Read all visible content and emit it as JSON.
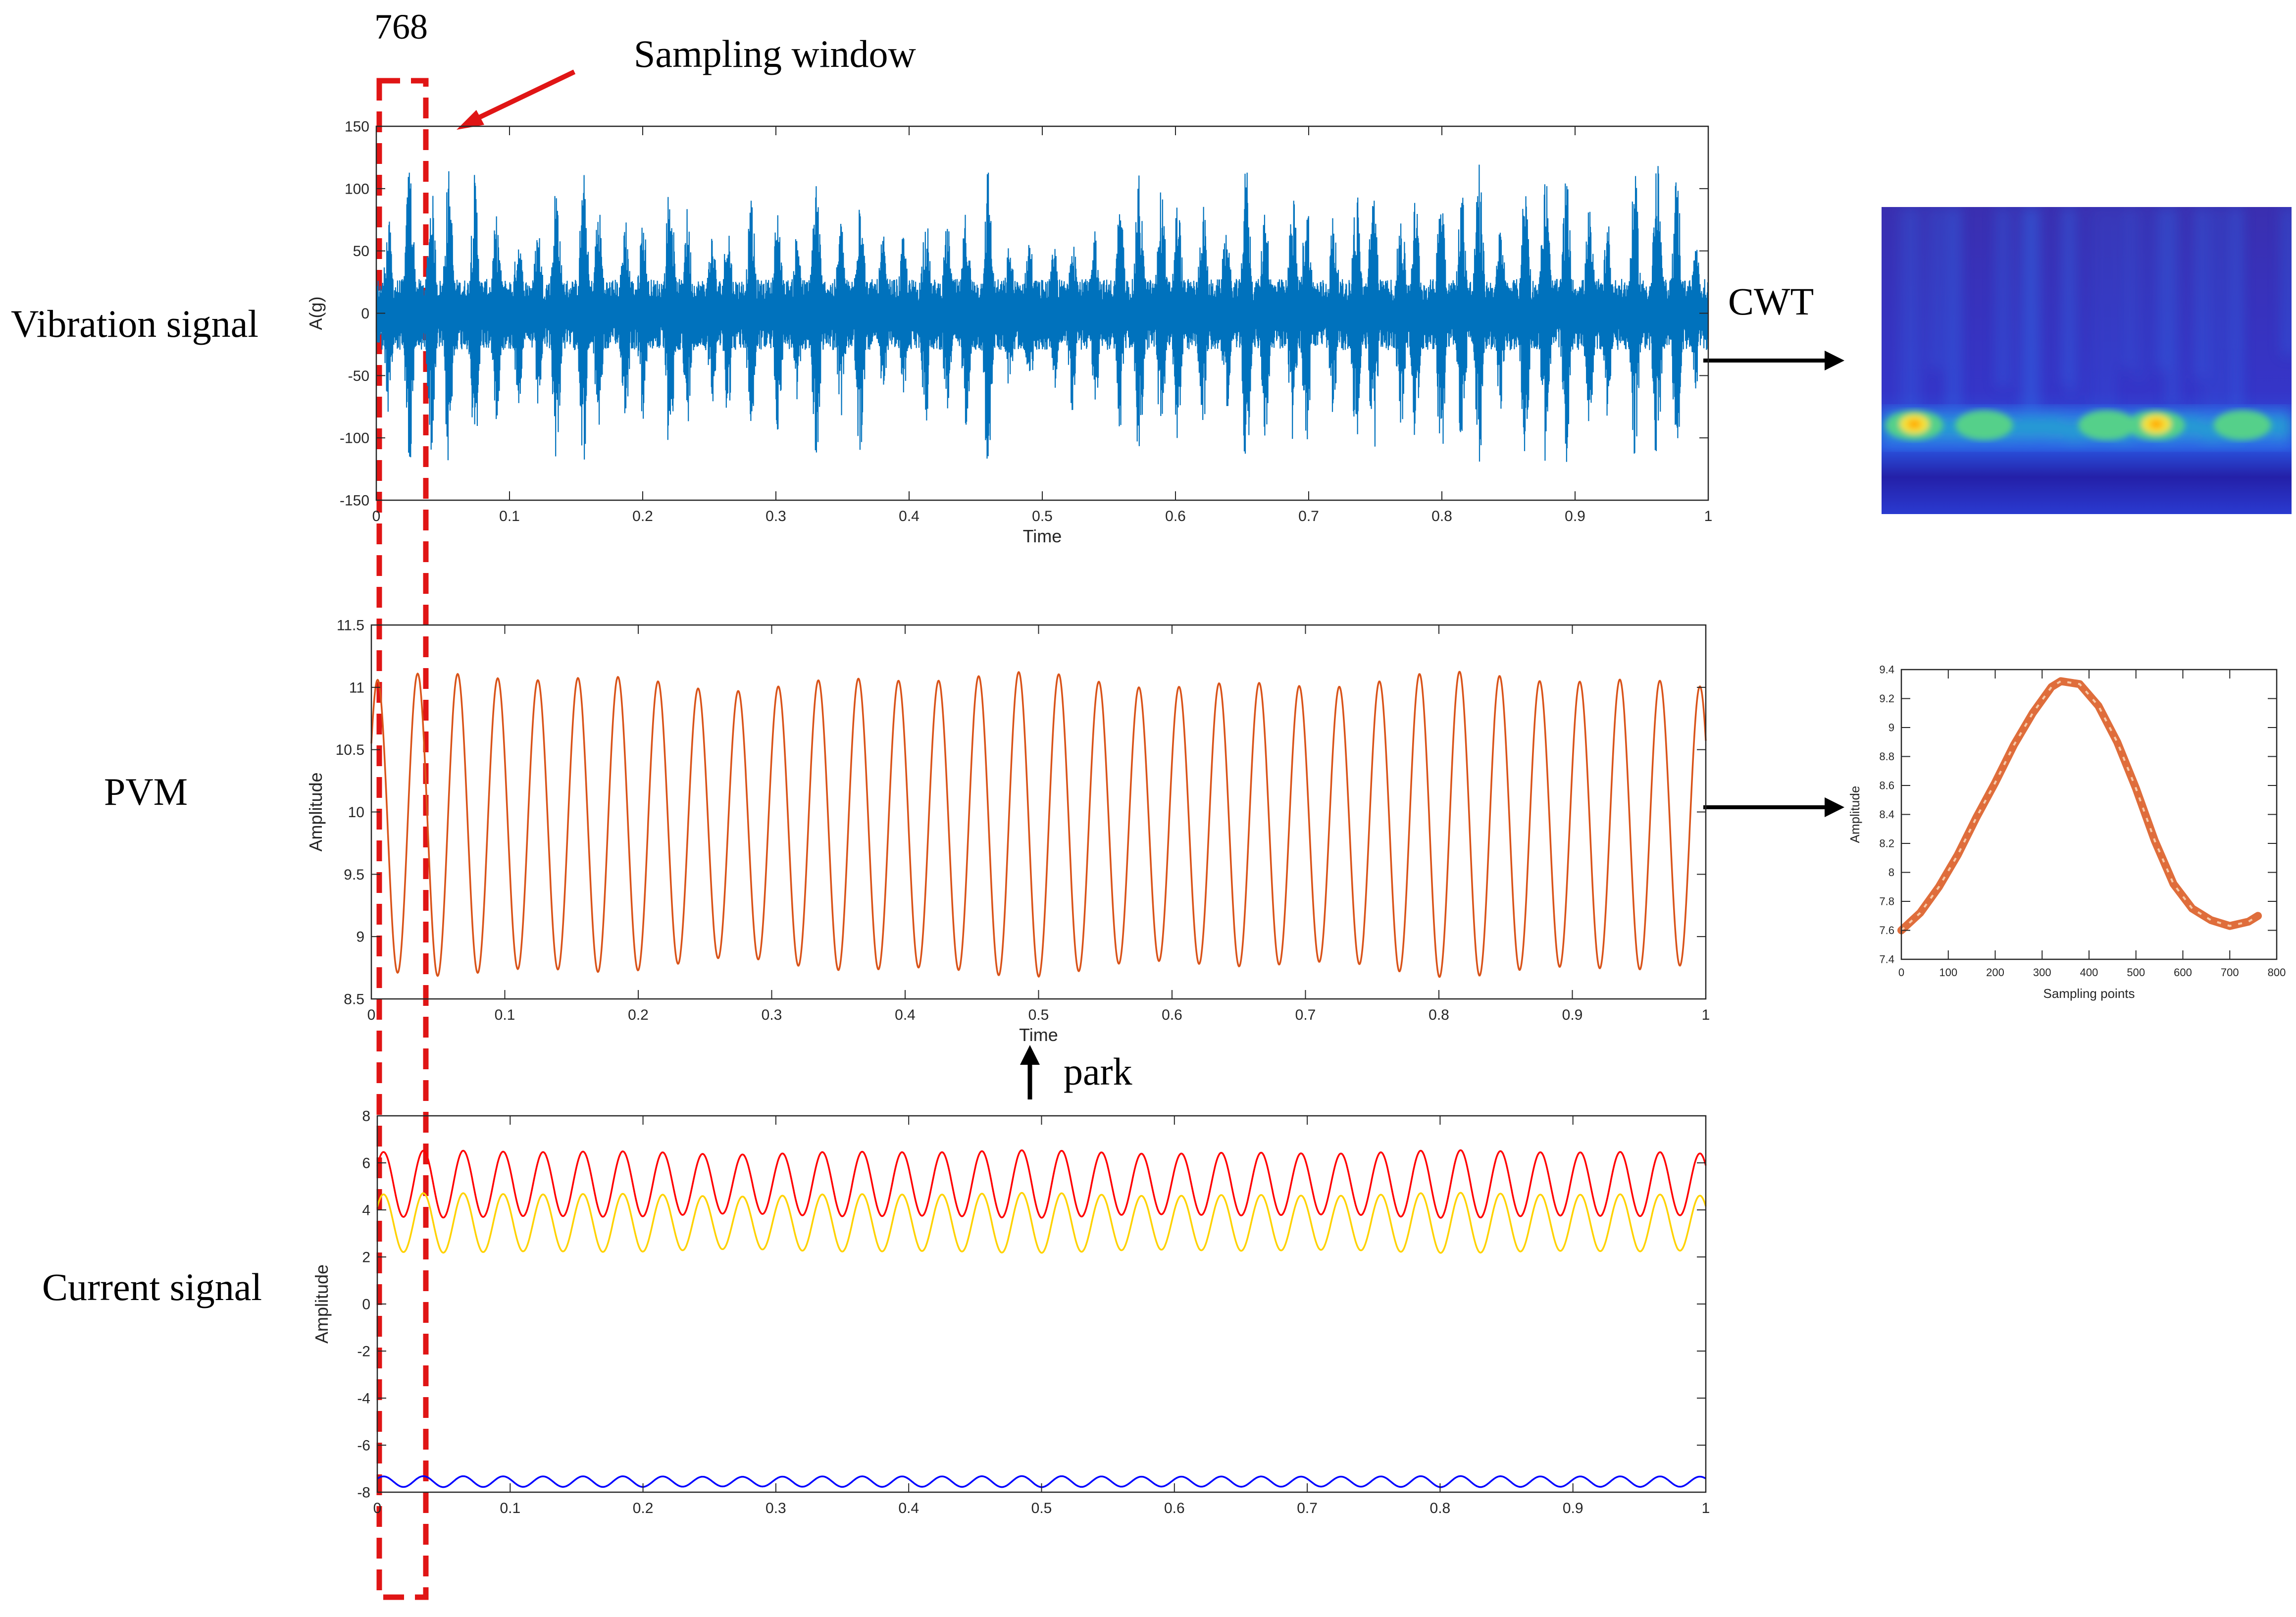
{
  "annotations": {
    "window_size": "768",
    "sampling_window": "Sampling window",
    "cwt": "CWT",
    "park": "park"
  },
  "row_labels": {
    "vibration": "Vibration signal",
    "pvm": "PVM",
    "current": "Current signal"
  },
  "chart_data": [
    {
      "id": "vibration",
      "type": "line",
      "xlabel": "Time",
      "ylabel": "A(g)",
      "xlim": [
        0,
        1
      ],
      "ylim": [
        -150,
        150
      ],
      "xticks": [
        "0",
        "0.1",
        "0.2",
        "0.3",
        "0.4",
        "0.5",
        "0.6",
        "0.7",
        "0.8",
        "0.9",
        "1"
      ],
      "yticks": [
        "-150",
        "-100",
        "-50",
        "0",
        "50",
        "100",
        "150"
      ],
      "series": [
        {
          "color": "#0072BD",
          "kind": "noise-bursts",
          "burst_count": 62,
          "max_amplitude": 125,
          "min_amplitude": -135
        }
      ]
    },
    {
      "id": "pvm",
      "type": "line",
      "xlabel": "Time",
      "ylabel": "Amplitude",
      "xlim": [
        0,
        1
      ],
      "ylim": [
        8.5,
        11.5
      ],
      "xticks": [
        "0",
        "0.1",
        "0.2",
        "0.3",
        "0.4",
        "0.5",
        "0.6",
        "0.7",
        "0.8",
        "0.9",
        "1"
      ],
      "yticks": [
        "8.5",
        "9",
        "9.5",
        "10",
        "10.5",
        "11",
        "11.5"
      ],
      "series": [
        {
          "color": "#D95319",
          "kind": "sine",
          "cycles": 33.3,
          "center": 9.9,
          "amplitude": 1.15
        }
      ]
    },
    {
      "id": "current",
      "type": "line",
      "xlabel": "",
      "ylabel": "Amplitude",
      "xlim": [
        0,
        1
      ],
      "ylim": [
        -8,
        8
      ],
      "xticks": [
        "0",
        "0.1",
        "0.2",
        "0.3",
        "0.4",
        "0.5",
        "0.6",
        "0.7",
        "0.8",
        "0.9",
        "1"
      ],
      "yticks": [
        "-8",
        "-6",
        "-4",
        "-2",
        "0",
        "2",
        "4",
        "6",
        "8"
      ],
      "series": [
        {
          "color": "#FF0000",
          "kind": "sine",
          "cycles": 33.3,
          "center": 5.1,
          "amplitude": 1.35
        },
        {
          "color": "#FFD200",
          "kind": "sine",
          "cycles": 33.3,
          "center": 3.45,
          "amplitude": 1.2
        },
        {
          "color": "#0000FF",
          "kind": "sine",
          "cycles": 33.3,
          "center": -7.55,
          "amplitude": 0.22
        }
      ]
    },
    {
      "id": "pvm-window",
      "type": "line",
      "xlabel": "Sampling points",
      "ylabel": "Amplitude",
      "xlim": [
        0,
        800
      ],
      "ylim": [
        7.4,
        9.4
      ],
      "xticks": [
        "0",
        "100",
        "200",
        "300",
        "400",
        "500",
        "600",
        "700",
        "800"
      ],
      "yticks": [
        "7.4",
        "7.6",
        "7.8",
        "8",
        "8.2",
        "8.4",
        "8.6",
        "8.8",
        "9",
        "9.2",
        "9.4"
      ],
      "series": [
        {
          "color": "#D95319",
          "x": [
            0,
            40,
            80,
            120,
            160,
            200,
            240,
            280,
            320,
            340,
            380,
            420,
            460,
            500,
            540,
            580,
            620,
            660,
            700,
            740,
            760
          ],
          "y": [
            7.6,
            7.72,
            7.9,
            8.12,
            8.38,
            8.62,
            8.88,
            9.1,
            9.28,
            9.32,
            9.3,
            9.15,
            8.9,
            8.58,
            8.22,
            7.92,
            7.75,
            7.67,
            7.63,
            7.66,
            7.7
          ]
        }
      ]
    }
  ],
  "cwt_image": {
    "colormap": [
      "#2a1fa0",
      "#2f3fd8",
      "#2f6fe8",
      "#21b0c8",
      "#55d08a",
      "#f3e23a"
    ],
    "ridge_scale_fraction": 0.72,
    "hotspots": [
      0.08,
      0.25,
      0.55,
      0.67,
      0.88
    ]
  }
}
